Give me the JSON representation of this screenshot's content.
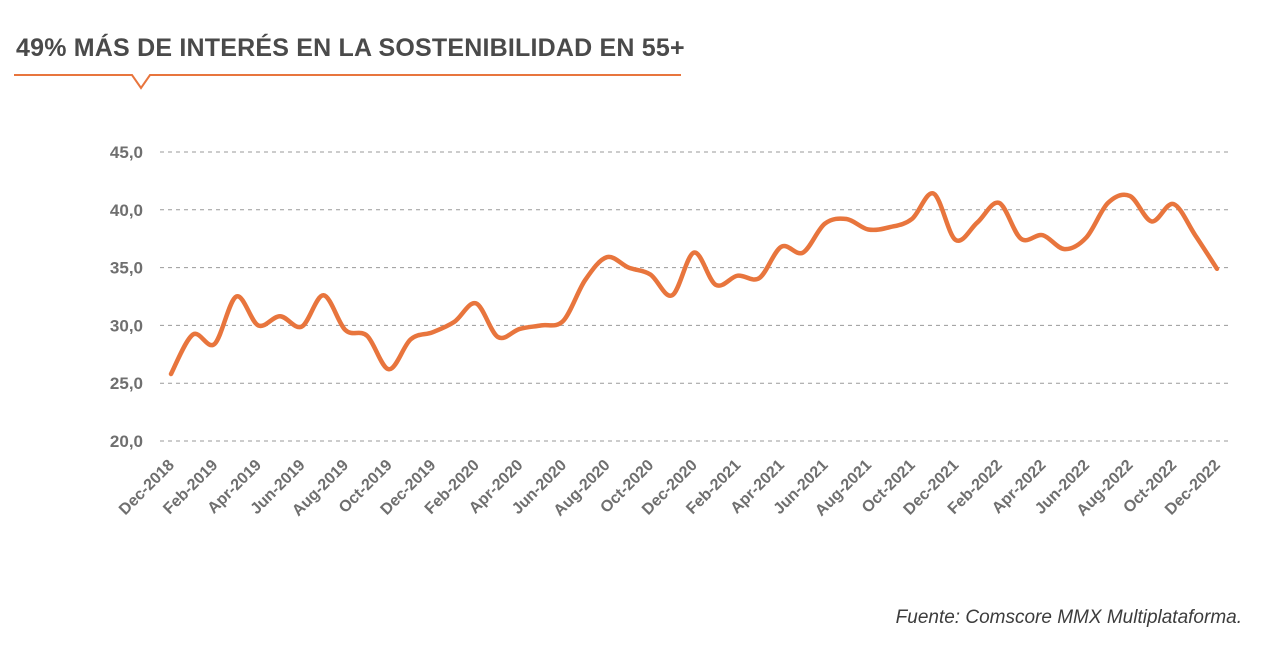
{
  "title": "49% MÁS DE INTERÉS EN LA SOSTENIBILIDAD EN 55+",
  "source": "Fuente: Comscore MMX Multiplataforma.",
  "colors": {
    "line": "#E8753D",
    "accent": "#E8753D",
    "grid": "#9a9a9a",
    "text": "#6f6f6f"
  },
  "chart_data": {
    "type": "line",
    "title": "49% MÁS DE INTERÉS EN LA SOSTENIBILIDAD EN 55+",
    "xlabel": "",
    "ylabel": "",
    "ylim": [
      20,
      45
    ],
    "yticks": [
      "20,0",
      "25,0",
      "30,0",
      "35,0",
      "40,0",
      "45,0"
    ],
    "grid": true,
    "legend": "none",
    "x": [
      "Dec-2018",
      "Jan-2019",
      "Feb-2019",
      "Mar-2019",
      "Apr-2019",
      "May-2019",
      "Jun-2019",
      "Jul-2019",
      "Aug-2019",
      "Sep-2019",
      "Oct-2019",
      "Nov-2019",
      "Dec-2019",
      "Jan-2020",
      "Feb-2020",
      "Mar-2020",
      "Apr-2020",
      "May-2020",
      "Jun-2020",
      "Jul-2020",
      "Aug-2020",
      "Sep-2020",
      "Oct-2020",
      "Nov-2020",
      "Dec-2020",
      "Jan-2021",
      "Feb-2021",
      "Mar-2021",
      "Apr-2021",
      "May-2021",
      "Jun-2021",
      "Jul-2021",
      "Aug-2021",
      "Sep-2021",
      "Oct-2021",
      "Nov-2021",
      "Dec-2021",
      "Jan-2022",
      "Feb-2022",
      "Mar-2022",
      "Apr-2022",
      "May-2022",
      "Jun-2022",
      "Jul-2022",
      "Aug-2022",
      "Sep-2022",
      "Oct-2022",
      "Nov-2022",
      "Dec-2022"
    ],
    "xtick_labels": [
      "Dec-2018",
      "Feb-2019",
      "Apr-2019",
      "Jun-2019",
      "Aug-2019",
      "Oct-2019",
      "Dec-2019",
      "Feb-2020",
      "Apr-2020",
      "Jun-2020",
      "Aug-2020",
      "Oct-2020",
      "Dec-2020",
      "Feb-2021",
      "Apr-2021",
      "Jun-2021",
      "Aug-2021",
      "Oct-2021",
      "Dec-2021",
      "Feb-2022",
      "Apr-2022",
      "Jun-2022",
      "Aug-2022",
      "Oct-2022",
      "Dec-2022"
    ],
    "series": [
      {
        "name": "Interés en la sostenibilidad 55+",
        "values": [
          25.8,
          29.2,
          28.4,
          32.5,
          30.0,
          30.8,
          29.9,
          32.6,
          29.6,
          29.1,
          26.2,
          28.8,
          29.4,
          30.3,
          31.9,
          29.0,
          29.7,
          30.0,
          30.4,
          33.9,
          35.9,
          35.0,
          34.4,
          32.6,
          36.3,
          33.5,
          34.3,
          34.1,
          36.8,
          36.3,
          38.8,
          39.2,
          38.3,
          38.5,
          39.2,
          41.4,
          37.4,
          38.9,
          40.6,
          37.5,
          37.8,
          36.6,
          37.6,
          40.6,
          41.2,
          39.0,
          40.5,
          37.8,
          34.9
        ]
      }
    ]
  }
}
